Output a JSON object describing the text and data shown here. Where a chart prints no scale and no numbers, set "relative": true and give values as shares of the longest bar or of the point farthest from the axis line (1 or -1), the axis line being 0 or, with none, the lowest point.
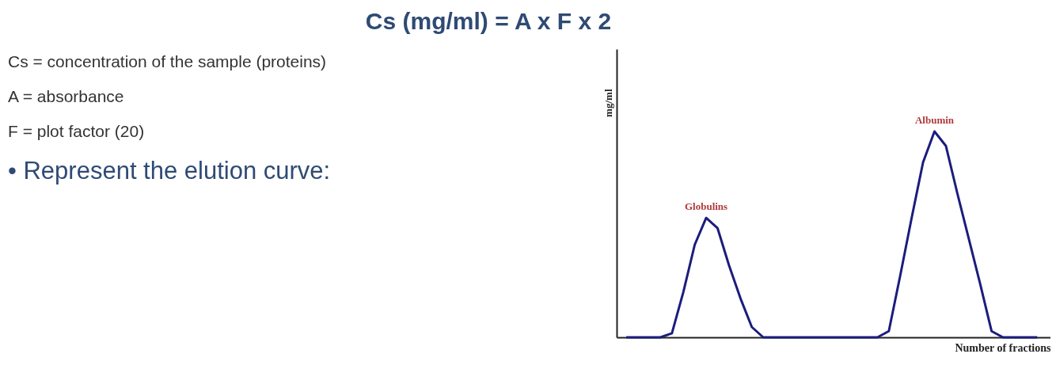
{
  "chart_data": {
    "type": "line",
    "title": "Cs (mg/ml) = A x F x 2",
    "xlabel": "Number of fractions",
    "ylabel": "mg/ml",
    "relative": true,
    "grid": false,
    "marker": "none",
    "line_style": "solid",
    "categories": [
      null,
      null,
      null,
      null,
      null,
      null,
      null,
      null,
      null,
      null,
      null,
      null,
      null,
      null,
      null,
      null,
      null,
      null,
      null,
      null,
      null,
      null,
      null,
      null,
      null,
      null,
      null,
      null,
      null,
      null,
      null,
      null,
      null,
      null,
      null,
      null,
      null
    ],
    "series": [
      {
        "color": "#1c1c7c",
        "values": [
          0,
          0,
          0,
          0,
          0.02,
          0.22,
          0.45,
          0.58,
          0.53,
          0.35,
          0.19,
          0.05,
          0,
          0,
          0,
          0,
          0,
          0,
          0,
          0,
          0,
          0,
          0,
          0.03,
          0.3,
          0.58,
          0.85,
          1,
          0.93,
          0.7,
          0.48,
          0.26,
          0.03,
          0,
          0,
          0,
          0
        ]
      }
    ],
    "annotations": [
      "Cs = concentration of the sample (proteins)",
      "A = absorbance",
      "F = plot factor (20)",
      "• Represent the elution curve:",
      {
        "text": "Globulins",
        "y": 0.58
      },
      {
        "text": "Albumin",
        "y": 1
      }
    ]
  }
}
